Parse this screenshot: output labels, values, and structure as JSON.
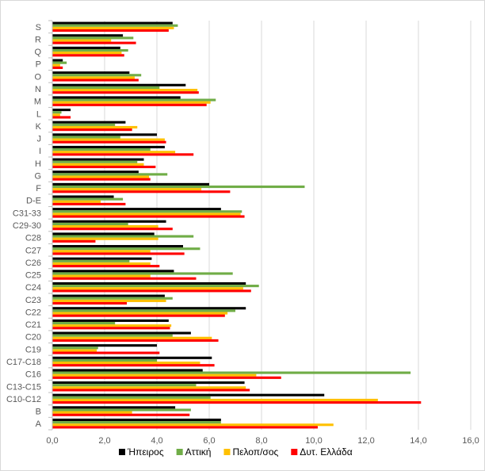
{
  "chart_data": {
    "type": "bar",
    "orientation": "horizontal",
    "categories": [
      "S",
      "R",
      "Q",
      "P",
      "O",
      "N",
      "M",
      "L",
      "K",
      "J",
      "I",
      "H",
      "G",
      "F",
      "D-E",
      "C31-33",
      "C29-30",
      "C28",
      "C27",
      "C26",
      "C25",
      "C24",
      "C23",
      "C22",
      "C21",
      "C20",
      "C19",
      "C17-C18",
      "C16",
      "C13-C15",
      "C10-C12",
      "B",
      "A"
    ],
    "series": [
      {
        "name": "Ήπειρος",
        "color": "#000000",
        "values": [
          4.6,
          2.7,
          2.6,
          0.4,
          2.95,
          5.1,
          4.9,
          0.7,
          2.8,
          4.0,
          4.3,
          3.5,
          3.3,
          6.0,
          2.35,
          6.45,
          4.35,
          3.9,
          5.0,
          3.8,
          4.65,
          7.4,
          4.3,
          7.4,
          4.45,
          5.3,
          4.0,
          6.1,
          5.75,
          7.35,
          10.4,
          4.7,
          6.45
        ]
      },
      {
        "name": "Αττική",
        "color": "#70AD47",
        "values": [
          4.8,
          3.1,
          2.9,
          0.55,
          3.4,
          4.1,
          6.25,
          0.35,
          2.4,
          2.6,
          3.75,
          3.25,
          4.4,
          9.65,
          2.7,
          7.25,
          2.9,
          5.4,
          5.65,
          2.95,
          6.9,
          7.9,
          4.6,
          7.0,
          2.4,
          4.6,
          1.75,
          4.0,
          13.7,
          5.5,
          6.05,
          5.3,
          6.45
        ]
      },
      {
        "name": "Πελοπ/σος",
        "color": "#FFC000",
        "values": [
          4.65,
          2.25,
          2.65,
          0.3,
          3.15,
          5.55,
          6.05,
          0.3,
          3.25,
          4.3,
          4.7,
          3.5,
          3.7,
          5.7,
          1.85,
          7.2,
          4.05,
          4.05,
          3.75,
          3.75,
          3.75,
          7.3,
          4.35,
          6.7,
          4.55,
          6.1,
          1.7,
          5.65,
          7.8,
          7.4,
          12.45,
          3.05,
          10.75
        ]
      },
      {
        "name": "Δυτ. Ελλάδα",
        "color": "#FF0000",
        "values": [
          4.45,
          3.2,
          2.75,
          0.4,
          3.3,
          5.6,
          5.9,
          0.7,
          3.05,
          4.35,
          5.4,
          3.95,
          3.75,
          6.8,
          2.8,
          7.35,
          4.6,
          1.65,
          5.05,
          4.1,
          5.5,
          7.6,
          2.85,
          6.6,
          4.5,
          6.35,
          4.1,
          6.2,
          8.75,
          7.55,
          14.1,
          5.25,
          10.15
        ]
      }
    ],
    "xlim": [
      0,
      16
    ],
    "xticks": [
      "0,0",
      "2,0",
      "4,0",
      "6,0",
      "8,0",
      "10,0",
      "12,0",
      "14,0",
      "16,0"
    ],
    "grid": true,
    "legend_position": "bottom"
  }
}
